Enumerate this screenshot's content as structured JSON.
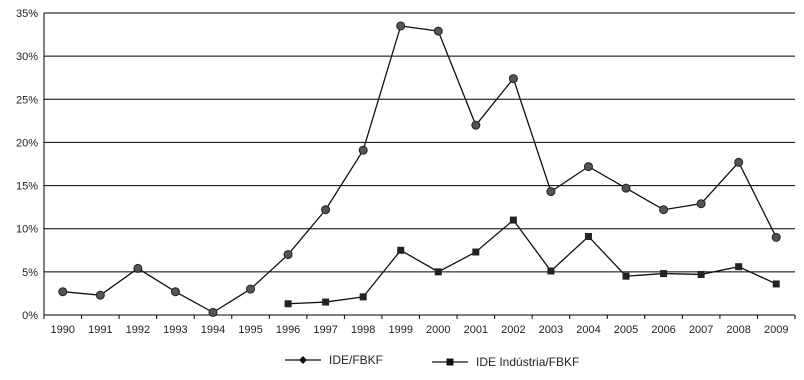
{
  "chart_data": {
    "type": "line",
    "x": [
      "1990",
      "1991",
      "1992",
      "1993",
      "1994",
      "1995",
      "1996",
      "1997",
      "1998",
      "1999",
      "2000",
      "2001",
      "2002",
      "2003",
      "2004",
      "2005",
      "2006",
      "2007",
      "2008",
      "2009"
    ],
    "ylim": [
      0,
      35
    ],
    "yticks": [
      "0%",
      "5%",
      "10%",
      "15%",
      "20%",
      "25%",
      "30%",
      "35%"
    ],
    "grid": true,
    "legend_position": "bottom",
    "colors": {
      "line": "#111111",
      "grid": "#000000"
    },
    "series": [
      {
        "name": "IDE/FBKF",
        "marker": "diamond",
        "values": [
          2.7,
          2.3,
          5.4,
          2.7,
          0.3,
          3.0,
          7.0,
          12.2,
          19.1,
          33.5,
          32.9,
          22.0,
          27.4,
          14.3,
          17.2,
          14.7,
          12.2,
          12.9,
          17.7,
          9.0
        ]
      },
      {
        "name": "IDE Indústria/FBKF",
        "marker": "square",
        "values": [
          null,
          null,
          null,
          null,
          null,
          null,
          1.3,
          1.5,
          2.1,
          7.5,
          5.0,
          7.3,
          11.0,
          5.1,
          9.1,
          4.5,
          4.8,
          4.7,
          5.6,
          3.6
        ]
      }
    ]
  }
}
